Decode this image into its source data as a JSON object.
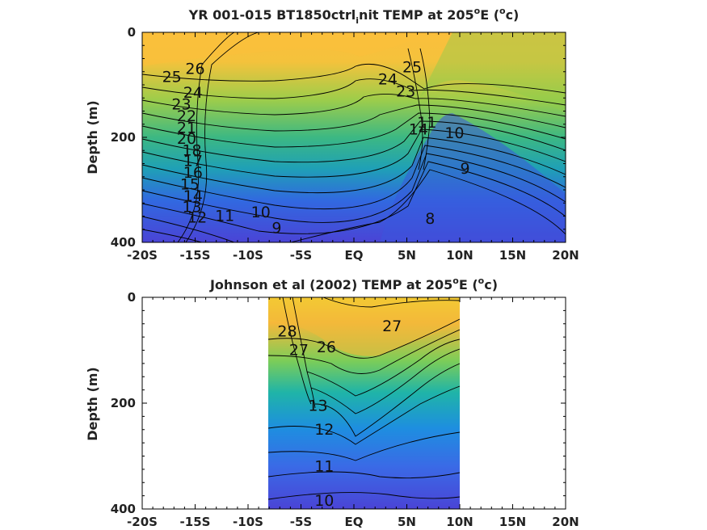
{
  "chart_data": [
    {
      "type": "heatmap",
      "subtype": "filled-contour",
      "title": "YR 001-015 BT1850ctrl_init TEMP at 205",
      "title_suffix": "E (",
      "title_unit_sup": "o",
      "title_unit": "c)",
      "title_parts": [
        "YR 001-015 BT1850ctrl",
        "i",
        "nit TEMP at 205",
        "o",
        "E (",
        "o",
        "c)"
      ],
      "xlabel": "",
      "ylabel": "Depth (m)",
      "xlim": [
        -20,
        20
      ],
      "ylim": [
        400,
        0
      ],
      "x_ticks": [
        -20,
        -15,
        -10,
        -5,
        0,
        5,
        10,
        15,
        20
      ],
      "x_tick_labels": [
        "-20S",
        "-15S",
        "-10S",
        "-5S",
        "EQ",
        "5N",
        "10N",
        "15N",
        "20N"
      ],
      "y_ticks": [
        0,
        200,
        400
      ],
      "y_tick_labels": [
        "0",
        "200",
        "400"
      ],
      "data_extent_x": [
        -20,
        20
      ],
      "contour_labels": [
        {
          "text": "26",
          "x": -15,
          "y": 70
        },
        {
          "text": "25",
          "x": -17.2,
          "y": 85
        },
        {
          "text": "24",
          "x": -15.2,
          "y": 115
        },
        {
          "text": "23",
          "x": -16.3,
          "y": 138
        },
        {
          "text": "22",
          "x": -15.8,
          "y": 160
        },
        {
          "text": "21",
          "x": -15.8,
          "y": 182
        },
        {
          "text": "20",
          "x": -15.8,
          "y": 203
        },
        {
          "text": "18",
          "x": -15.3,
          "y": 225
        },
        {
          "text": "17",
          "x": -15.2,
          "y": 245
        },
        {
          "text": "16",
          "x": -15.2,
          "y": 268
        },
        {
          "text": "15",
          "x": -15.5,
          "y": 290
        },
        {
          "text": "14",
          "x": -15.2,
          "y": 312
        },
        {
          "text": "13",
          "x": -15.3,
          "y": 333
        },
        {
          "text": "12",
          "x": -14.8,
          "y": 353
        },
        {
          "text": "11",
          "x": -12.2,
          "y": 350
        },
        {
          "text": "10",
          "x": -8.8,
          "y": 343
        },
        {
          "text": "9",
          "x": -7.3,
          "y": 373
        },
        {
          "text": "8",
          "x": 7.2,
          "y": 355
        },
        {
          "text": "9",
          "x": 10.5,
          "y": 260
        },
        {
          "text": "10",
          "x": 9.5,
          "y": 192
        },
        {
          "text": "25",
          "x": 5.5,
          "y": 67
        },
        {
          "text": "24",
          "x": 3.2,
          "y": 90
        },
        {
          "text": "23",
          "x": 4.9,
          "y": 113
        },
        {
          "text": "11",
          "x": 6.9,
          "y": 172
        },
        {
          "text": "14",
          "x": 6.1,
          "y": 185
        }
      ],
      "colorbar": "none"
    },
    {
      "type": "heatmap",
      "subtype": "filled-contour",
      "title": "Johnson et al (2002) TEMP at 205",
      "title_suffix": "E (",
      "title_unit_sup": "o",
      "title_unit": "c)",
      "xlabel": "",
      "ylabel": "Depth (m)",
      "xlim": [
        -20,
        20
      ],
      "ylim": [
        400,
        0
      ],
      "x_ticks": [
        -20,
        -15,
        -10,
        -5,
        0,
        5,
        10,
        15,
        20
      ],
      "x_tick_labels": [
        "-20S",
        "-15S",
        "-10S",
        "-5S",
        "EQ",
        "5N",
        "10N",
        "15N",
        "20N"
      ],
      "y_ticks": [
        0,
        200,
        400
      ],
      "y_tick_labels": [
        "0",
        "200",
        "400"
      ],
      "data_extent_x": [
        -8,
        10
      ],
      "contour_labels": [
        {
          "text": "28",
          "x": -6.3,
          "y": 65
        },
        {
          "text": "27",
          "x": -5.2,
          "y": 100
        },
        {
          "text": "26",
          "x": -2.6,
          "y": 95
        },
        {
          "text": "27",
          "x": 3.6,
          "y": 55
        },
        {
          "text": "13",
          "x": -3.4,
          "y": 205
        },
        {
          "text": "12",
          "x": -2.8,
          "y": 250
        },
        {
          "text": "11",
          "x": -2.8,
          "y": 320
        },
        {
          "text": "10",
          "x": -2.8,
          "y": 385
        }
      ],
      "colorbar": "none"
    }
  ]
}
